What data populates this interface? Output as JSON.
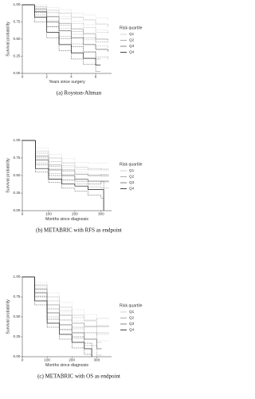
{
  "chart_data": [
    {
      "type": "step",
      "caption": "(a) Royston-Altman",
      "x_label": "Years since surgery",
      "y_label": "Survival probability",
      "legend_title": "Risk quartile",
      "legend": "right",
      "xlim": [
        0,
        7.3
      ],
      "xticks": [
        0,
        2,
        4,
        6
      ],
      "ylim": [
        0,
        1
      ],
      "yticks": [
        {
          "value": 0,
          "label": "0.00"
        },
        {
          "value": 0.25,
          "label": "0.25"
        },
        {
          "value": 0.5,
          "label": "0.50"
        },
        {
          "value": 0.75,
          "label": "0.75"
        },
        {
          "value": 1,
          "label": "1.00"
        }
      ],
      "series": [
        {
          "name": "Q1",
          "color": "#c8c8c8",
          "x": [
            0,
            1,
            2,
            3,
            4,
            5,
            6,
            7
          ],
          "values": [
            1,
            0.97,
            0.92,
            0.88,
            0.82,
            0.78,
            0.72,
            0.68
          ],
          "lower": [
            1,
            0.94,
            0.88,
            0.83,
            0.76,
            0.71,
            0.63,
            0.58
          ],
          "upper": [
            1,
            1,
            0.96,
            0.93,
            0.88,
            0.85,
            0.81,
            0.78
          ]
        },
        {
          "name": "Q2",
          "color": "#999999",
          "x": [
            0,
            1,
            2,
            3,
            4,
            5,
            6,
            7
          ],
          "values": [
            1,
            0.93,
            0.83,
            0.73,
            0.65,
            0.58,
            0.5,
            0.48
          ],
          "lower": [
            1,
            0.89,
            0.77,
            0.66,
            0.57,
            0.49,
            0.4,
            0.37
          ],
          "upper": [
            1,
            0.97,
            0.89,
            0.8,
            0.73,
            0.67,
            0.6,
            0.59
          ]
        },
        {
          "name": "Q3",
          "color": "#666666",
          "x": [
            0,
            1,
            2,
            3,
            4,
            5,
            6,
            7
          ],
          "values": [
            1,
            0.9,
            0.75,
            0.62,
            0.52,
            0.42,
            0.35,
            0.32
          ],
          "lower": [
            1,
            0.85,
            0.68,
            0.54,
            0.43,
            0.32,
            0.24,
            0.2
          ],
          "upper": [
            1,
            0.95,
            0.82,
            0.7,
            0.61,
            0.52,
            0.46,
            0.44
          ]
        },
        {
          "name": "Q4",
          "color": "#1a1a1a",
          "x": [
            0,
            1,
            2,
            3,
            4,
            5,
            6,
            6.4
          ],
          "values": [
            1,
            0.82,
            0.6,
            0.42,
            0.3,
            0.22,
            0.12,
            0.12
          ],
          "lower": [
            1,
            0.75,
            0.52,
            0.33,
            0.21,
            0.13,
            0.03,
            0.03
          ],
          "upper": [
            1,
            0.89,
            0.68,
            0.51,
            0.39,
            0.31,
            0.21,
            0.21
          ]
        }
      ]
    },
    {
      "type": "step",
      "caption": "(b) METABRIC with RFS as endpoint",
      "x_label": "Months since diagnosis",
      "y_label": "Survival probability",
      "legend_title": "Risk quartile",
      "legend": "right",
      "xlim": [
        0,
        340
      ],
      "xticks": [
        0,
        100,
        200,
        300
      ],
      "ylim": [
        0,
        1
      ],
      "yticks": [
        {
          "value": 0,
          "label": "0.00"
        },
        {
          "value": 0.25,
          "label": "0.25"
        },
        {
          "value": 0.5,
          "label": "0.50"
        },
        {
          "value": 0.75,
          "label": "0.75"
        },
        {
          "value": 1,
          "label": "1.00"
        }
      ],
      "series": [
        {
          "name": "Q1",
          "color": "#c8c8c8",
          "x": [
            0,
            50,
            100,
            150,
            200,
            250,
            300,
            330
          ],
          "values": [
            1,
            0.85,
            0.75,
            0.68,
            0.62,
            0.6,
            0.58,
            0.58
          ],
          "lower": [
            1,
            0.81,
            0.7,
            0.62,
            0.55,
            0.52,
            0.48,
            0.48
          ],
          "upper": [
            1,
            0.89,
            0.8,
            0.74,
            0.69,
            0.68,
            0.68,
            0.68
          ]
        },
        {
          "name": "Q2",
          "color": "#999999",
          "x": [
            0,
            50,
            100,
            150,
            200,
            250,
            300,
            330
          ],
          "values": [
            1,
            0.78,
            0.65,
            0.58,
            0.52,
            0.5,
            0.5,
            0.5
          ],
          "lower": [
            1,
            0.74,
            0.6,
            0.52,
            0.45,
            0.42,
            0.4,
            0.4
          ],
          "upper": [
            1,
            0.82,
            0.7,
            0.64,
            0.59,
            0.58,
            0.6,
            0.6
          ]
        },
        {
          "name": "Q3",
          "color": "#666666",
          "x": [
            0,
            50,
            100,
            150,
            200,
            250,
            300,
            330
          ],
          "values": [
            1,
            0.72,
            0.58,
            0.5,
            0.45,
            0.42,
            0.42,
            0.42
          ],
          "lower": [
            1,
            0.68,
            0.53,
            0.44,
            0.38,
            0.34,
            0.32,
            0.32
          ],
          "upper": [
            1,
            0.76,
            0.63,
            0.56,
            0.52,
            0.5,
            0.52,
            0.52
          ]
        },
        {
          "name": "Q4",
          "color": "#1a1a1a",
          "x": [
            0,
            50,
            100,
            150,
            200,
            250,
            300,
            310
          ],
          "values": [
            1,
            0.6,
            0.45,
            0.38,
            0.35,
            0.3,
            0.3,
            0
          ],
          "lower": [
            1,
            0.55,
            0.4,
            0.32,
            0.28,
            0.22,
            0.18,
            0
          ],
          "upper": [
            1,
            0.65,
            0.5,
            0.44,
            0.42,
            0.38,
            0.42,
            0.05
          ]
        }
      ]
    },
    {
      "type": "step",
      "caption": "(c) METABRIC with OS as endpoint",
      "x_label": "Months since diagnosis",
      "y_label": "Survival probability",
      "legend_title": "Risk quartile",
      "legend": "right",
      "xlim": [
        0,
        360
      ],
      "xticks": [
        0,
        100,
        200,
        300
      ],
      "ylim": [
        0,
        1
      ],
      "yticks": [
        {
          "value": 0,
          "label": "0.00"
        },
        {
          "value": 0.25,
          "label": "0.25"
        },
        {
          "value": 0.5,
          "label": "0.50"
        },
        {
          "value": 0.75,
          "label": "0.75"
        },
        {
          "value": 1,
          "label": "1.00"
        }
      ],
      "series": [
        {
          "name": "Q1",
          "color": "#c8c8c8",
          "x": [
            0,
            50,
            100,
            150,
            200,
            250,
            300,
            350
          ],
          "values": [
            1,
            0.9,
            0.75,
            0.62,
            0.52,
            0.45,
            0.3,
            0.3
          ],
          "lower": [
            1,
            0.87,
            0.7,
            0.56,
            0.45,
            0.37,
            0.2,
            0.2
          ],
          "upper": [
            1,
            0.93,
            0.8,
            0.68,
            0.59,
            0.53,
            0.4,
            0.4
          ]
        },
        {
          "name": "Q2",
          "color": "#999999",
          "x": [
            0,
            50,
            100,
            150,
            200,
            250,
            300,
            350
          ],
          "values": [
            1,
            0.85,
            0.65,
            0.52,
            0.42,
            0.38,
            0.38,
            0.38
          ],
          "lower": [
            1,
            0.81,
            0.6,
            0.46,
            0.35,
            0.3,
            0.28,
            0.28
          ],
          "upper": [
            1,
            0.89,
            0.7,
            0.58,
            0.49,
            0.46,
            0.48,
            0.48
          ]
        },
        {
          "name": "Q3",
          "color": "#666666",
          "x": [
            0,
            50,
            100,
            150,
            200,
            250,
            300,
            320
          ],
          "values": [
            1,
            0.8,
            0.55,
            0.4,
            0.3,
            0.22,
            0.1,
            0.1
          ],
          "lower": [
            1,
            0.76,
            0.5,
            0.34,
            0.23,
            0.14,
            0.02,
            0.02
          ],
          "upper": [
            1,
            0.84,
            0.6,
            0.46,
            0.37,
            0.3,
            0.18,
            0.18
          ]
        },
        {
          "name": "Q4",
          "color": "#1a1a1a",
          "x": [
            0,
            50,
            100,
            150,
            200,
            250,
            270,
            280
          ],
          "values": [
            1,
            0.7,
            0.42,
            0.28,
            0.18,
            0.1,
            0.1,
            0
          ],
          "lower": [
            1,
            0.65,
            0.37,
            0.22,
            0.11,
            0.03,
            0.03,
            0
          ],
          "upper": [
            1,
            0.75,
            0.47,
            0.34,
            0.25,
            0.17,
            0.17,
            0.05
          ]
        }
      ]
    }
  ]
}
